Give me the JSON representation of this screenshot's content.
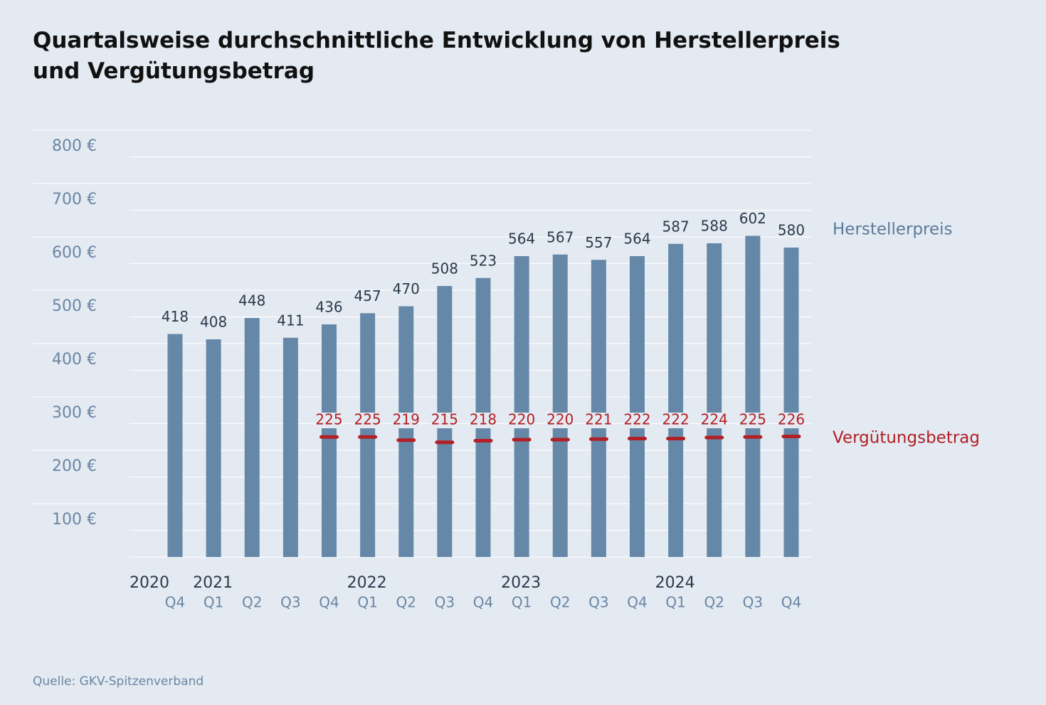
{
  "chart_data": {
    "type": "bar",
    "title": "Quartalsweise durchschnittliche Entwicklung von Herstellerpreis und Vergütungsbetrag",
    "source": "Quelle: GKV-Spitzenverband",
    "categories": [
      "Q4",
      "Q1",
      "Q2",
      "Q3",
      "Q4",
      "Q1",
      "Q2",
      "Q3",
      "Q4",
      "Q1",
      "Q2",
      "Q3",
      "Q4",
      "Q1",
      "Q2",
      "Q3",
      "Q4"
    ],
    "year_labels": [
      "2020",
      "2021",
      null,
      null,
      null,
      "2022",
      null,
      null,
      null,
      "2023",
      null,
      null,
      null,
      "2024",
      null,
      null,
      null
    ],
    "series": [
      {
        "name": "Herstellerpreis",
        "color": "#6688a8",
        "label_color": "#5b7a99",
        "values": [
          418,
          408,
          448,
          411,
          436,
          457,
          470,
          508,
          523,
          564,
          567,
          557,
          564,
          587,
          588,
          602,
          580
        ]
      },
      {
        "name": "Vergütungsbetrag",
        "color": "#b21f24",
        "values": [
          null,
          null,
          null,
          null,
          225,
          225,
          219,
          215,
          218,
          220,
          220,
          221,
          222,
          222,
          224,
          225,
          226
        ]
      }
    ],
    "ylim": [
      0,
      800
    ],
    "yticks": [
      {
        "value": 100,
        "label": "100 €"
      },
      {
        "value": 200,
        "label": "200 €"
      },
      {
        "value": 300,
        "label": "300 €"
      },
      {
        "value": 400,
        "label": "400 €"
      },
      {
        "value": 500,
        "label": "500 €"
      },
      {
        "value": 600,
        "label": "600 €"
      },
      {
        "value": 700,
        "label": "700 €"
      },
      {
        "value": 800,
        "label": "800 €"
      }
    ],
    "minor_yticks": [
      0,
      50,
      150,
      250,
      350,
      450,
      550,
      650,
      750
    ],
    "grid": true
  }
}
